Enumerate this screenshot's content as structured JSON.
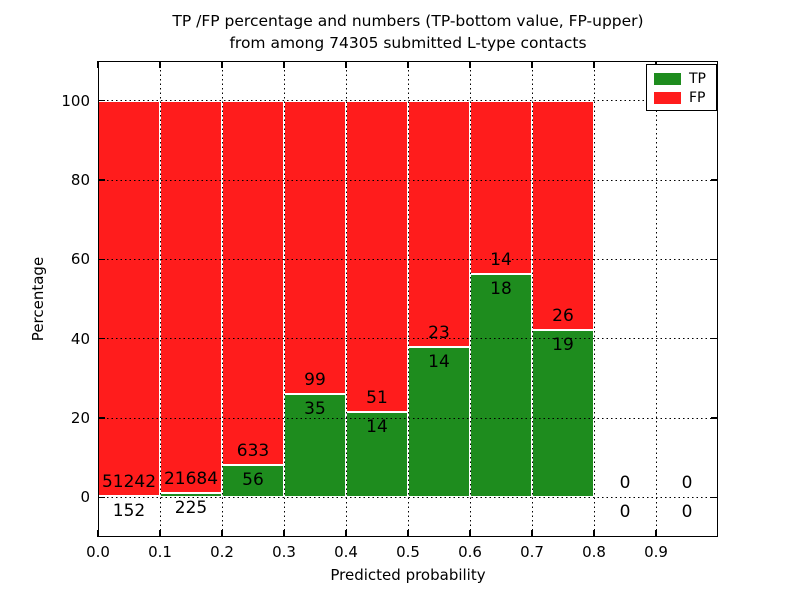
{
  "chart_data": {
    "type": "bar",
    "stacked": true,
    "title": "TP /FP percentage and numbers (TP-bottom value, FP-upper)\nfrom among 74305 submitted L-type contacts",
    "title_lines": [
      "TP /FP percentage and numbers (TP-bottom value, FP-upper)",
      "from among 74305 submitted L-type contacts"
    ],
    "total_submitted": 74305,
    "xlabel": "Predicted probability",
    "ylabel": "Percentage",
    "xlim": [
      0.0,
      1.0
    ],
    "ylim": [
      -10,
      110
    ],
    "xticks": [
      0.0,
      0.1,
      0.2,
      0.3,
      0.4,
      0.5,
      0.6,
      0.7,
      0.8,
      0.9
    ],
    "xtick_labels": [
      "0.0",
      "0.1",
      "0.2",
      "0.3",
      "0.4",
      "0.5",
      "0.6",
      "0.7",
      "0.8",
      "0.9"
    ],
    "yticks": [
      0,
      20,
      40,
      60,
      80,
      100
    ],
    "ytick_labels": [
      "0",
      "20",
      "40",
      "60",
      "80",
      "100"
    ],
    "grid": "dotted",
    "bar_total_height_pct": 100,
    "colors": {
      "tp": "#1e8c1e",
      "fp": "#ff1c1c",
      "edge": "#ffffff",
      "text": "#000000",
      "background": "#ffffff"
    },
    "legend": {
      "position": "upper right",
      "entries": [
        {
          "label": "TP",
          "color": "#1e8c1e"
        },
        {
          "label": "FP",
          "color": "#ff1c1c"
        }
      ]
    },
    "categories": [
      "0.0-0.1",
      "0.1-0.2",
      "0.2-0.3",
      "0.3-0.4",
      "0.4-0.5",
      "0.5-0.6",
      "0.6-0.7",
      "0.7-0.8",
      "0.8-0.9",
      "0.9-1.0"
    ],
    "bin_edges": [
      0.0,
      0.1,
      0.2,
      0.3,
      0.4,
      0.5,
      0.6,
      0.7,
      0.8,
      0.9,
      1.0
    ],
    "series": [
      {
        "name": "TP",
        "counts": [
          152,
          225,
          56,
          35,
          14,
          14,
          18,
          19,
          0,
          0
        ],
        "percentages": [
          0.3,
          1.0,
          8.1,
          26.1,
          21.5,
          37.8,
          56.3,
          42.2,
          0,
          0
        ]
      },
      {
        "name": "FP",
        "counts": [
          51242,
          21684,
          633,
          99,
          51,
          23,
          14,
          26,
          0,
          0
        ],
        "percentages": [
          99.7,
          99.0,
          91.9,
          73.9,
          78.5,
          62.2,
          43.7,
          57.8,
          0,
          0
        ]
      }
    ]
  }
}
